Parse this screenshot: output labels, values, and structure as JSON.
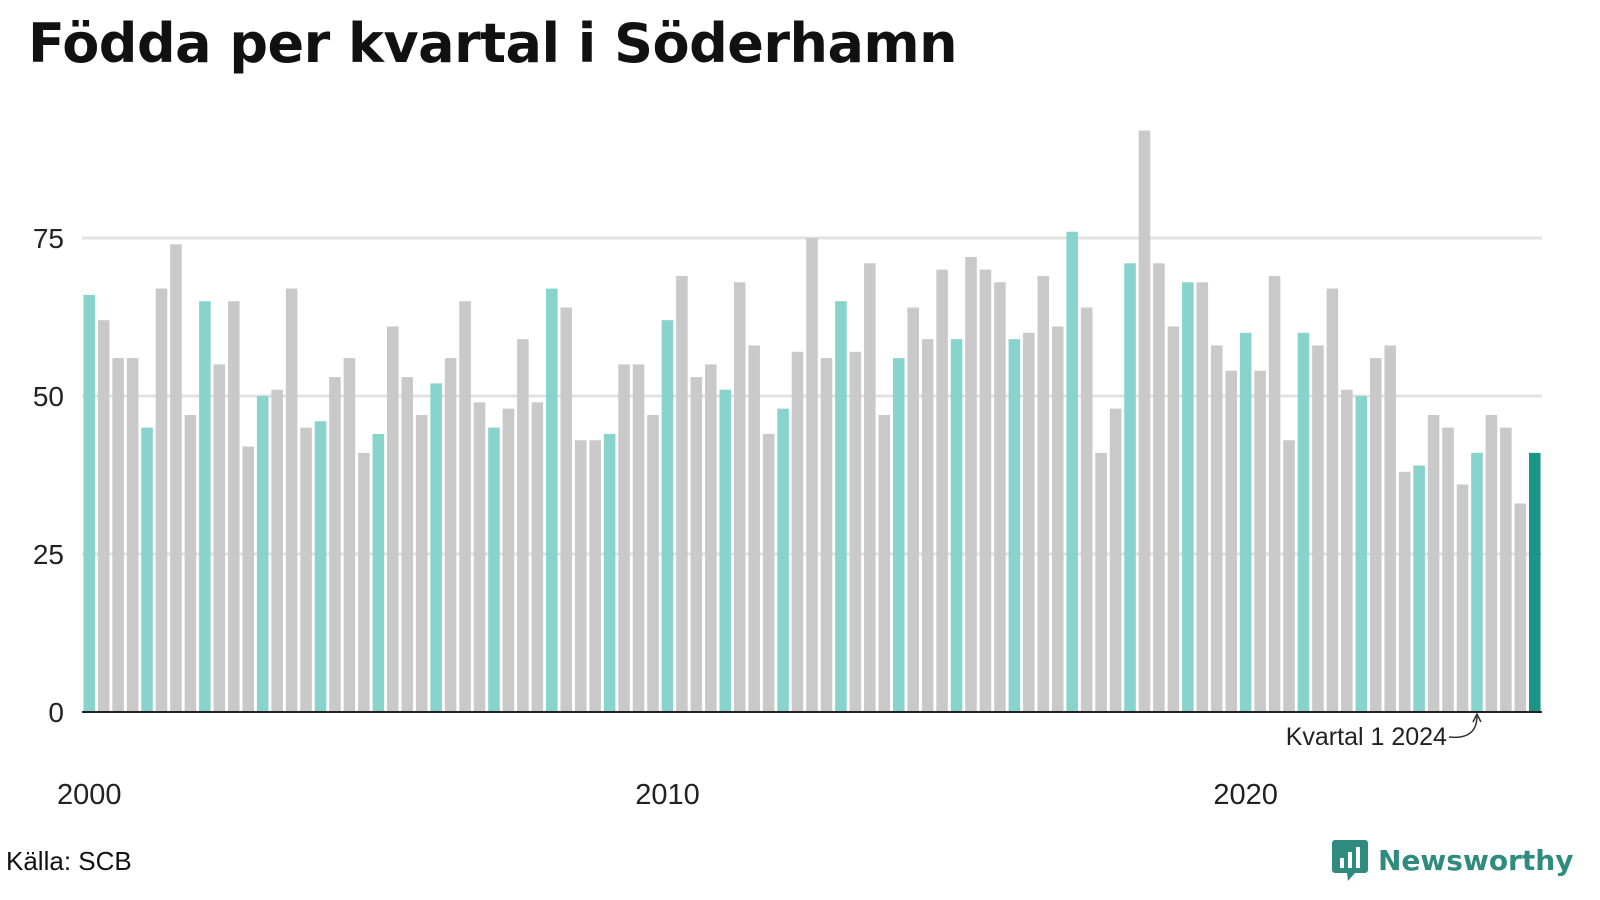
{
  "title": "Födda per kvartal i Söderhamn",
  "source": "Källa: SCB",
  "brand": {
    "name": "Newsworthy",
    "icon": "newsworthy-logo-icon"
  },
  "colors": {
    "q1": "#88d3cc",
    "other": "#c9c9c9",
    "highlight": "#1a9586",
    "grid": "#e2e2e2",
    "axis": "#222222",
    "brand": "#2e8b7d"
  },
  "chart_data": {
    "type": "bar",
    "title": "Födda per kvartal i Söderhamn",
    "start_year": 2000,
    "start_quarter": 1,
    "values": [
      66,
      62,
      56,
      56,
      45,
      67,
      74,
      47,
      65,
      55,
      65,
      42,
      50,
      51,
      67,
      45,
      46,
      53,
      56,
      41,
      44,
      61,
      53,
      47,
      52,
      56,
      65,
      49,
      45,
      48,
      59,
      49,
      67,
      64,
      43,
      43,
      44,
      55,
      55,
      47,
      62,
      69,
      53,
      55,
      51,
      68,
      58,
      44,
      48,
      57,
      75,
      56,
      65,
      57,
      71,
      47,
      56,
      64,
      59,
      70,
      59,
      72,
      70,
      68,
      59,
      60,
      69,
      61,
      76,
      64,
      41,
      48,
      71,
      92,
      71,
      61,
      68,
      68,
      58,
      54,
      60,
      54,
      69,
      43,
      60,
      58,
      67,
      51,
      50,
      56,
      58,
      38,
      39,
      47,
      45,
      36,
      41,
      47,
      45,
      33,
      41
    ],
    "ylim": [
      0,
      96
    ],
    "y_ticks": [
      0,
      25,
      50,
      75
    ],
    "x_ticks": [
      "2000",
      "2010",
      "2020"
    ],
    "annotation": "Kvartal 1 2024",
    "grid": true,
    "legend": "none"
  }
}
